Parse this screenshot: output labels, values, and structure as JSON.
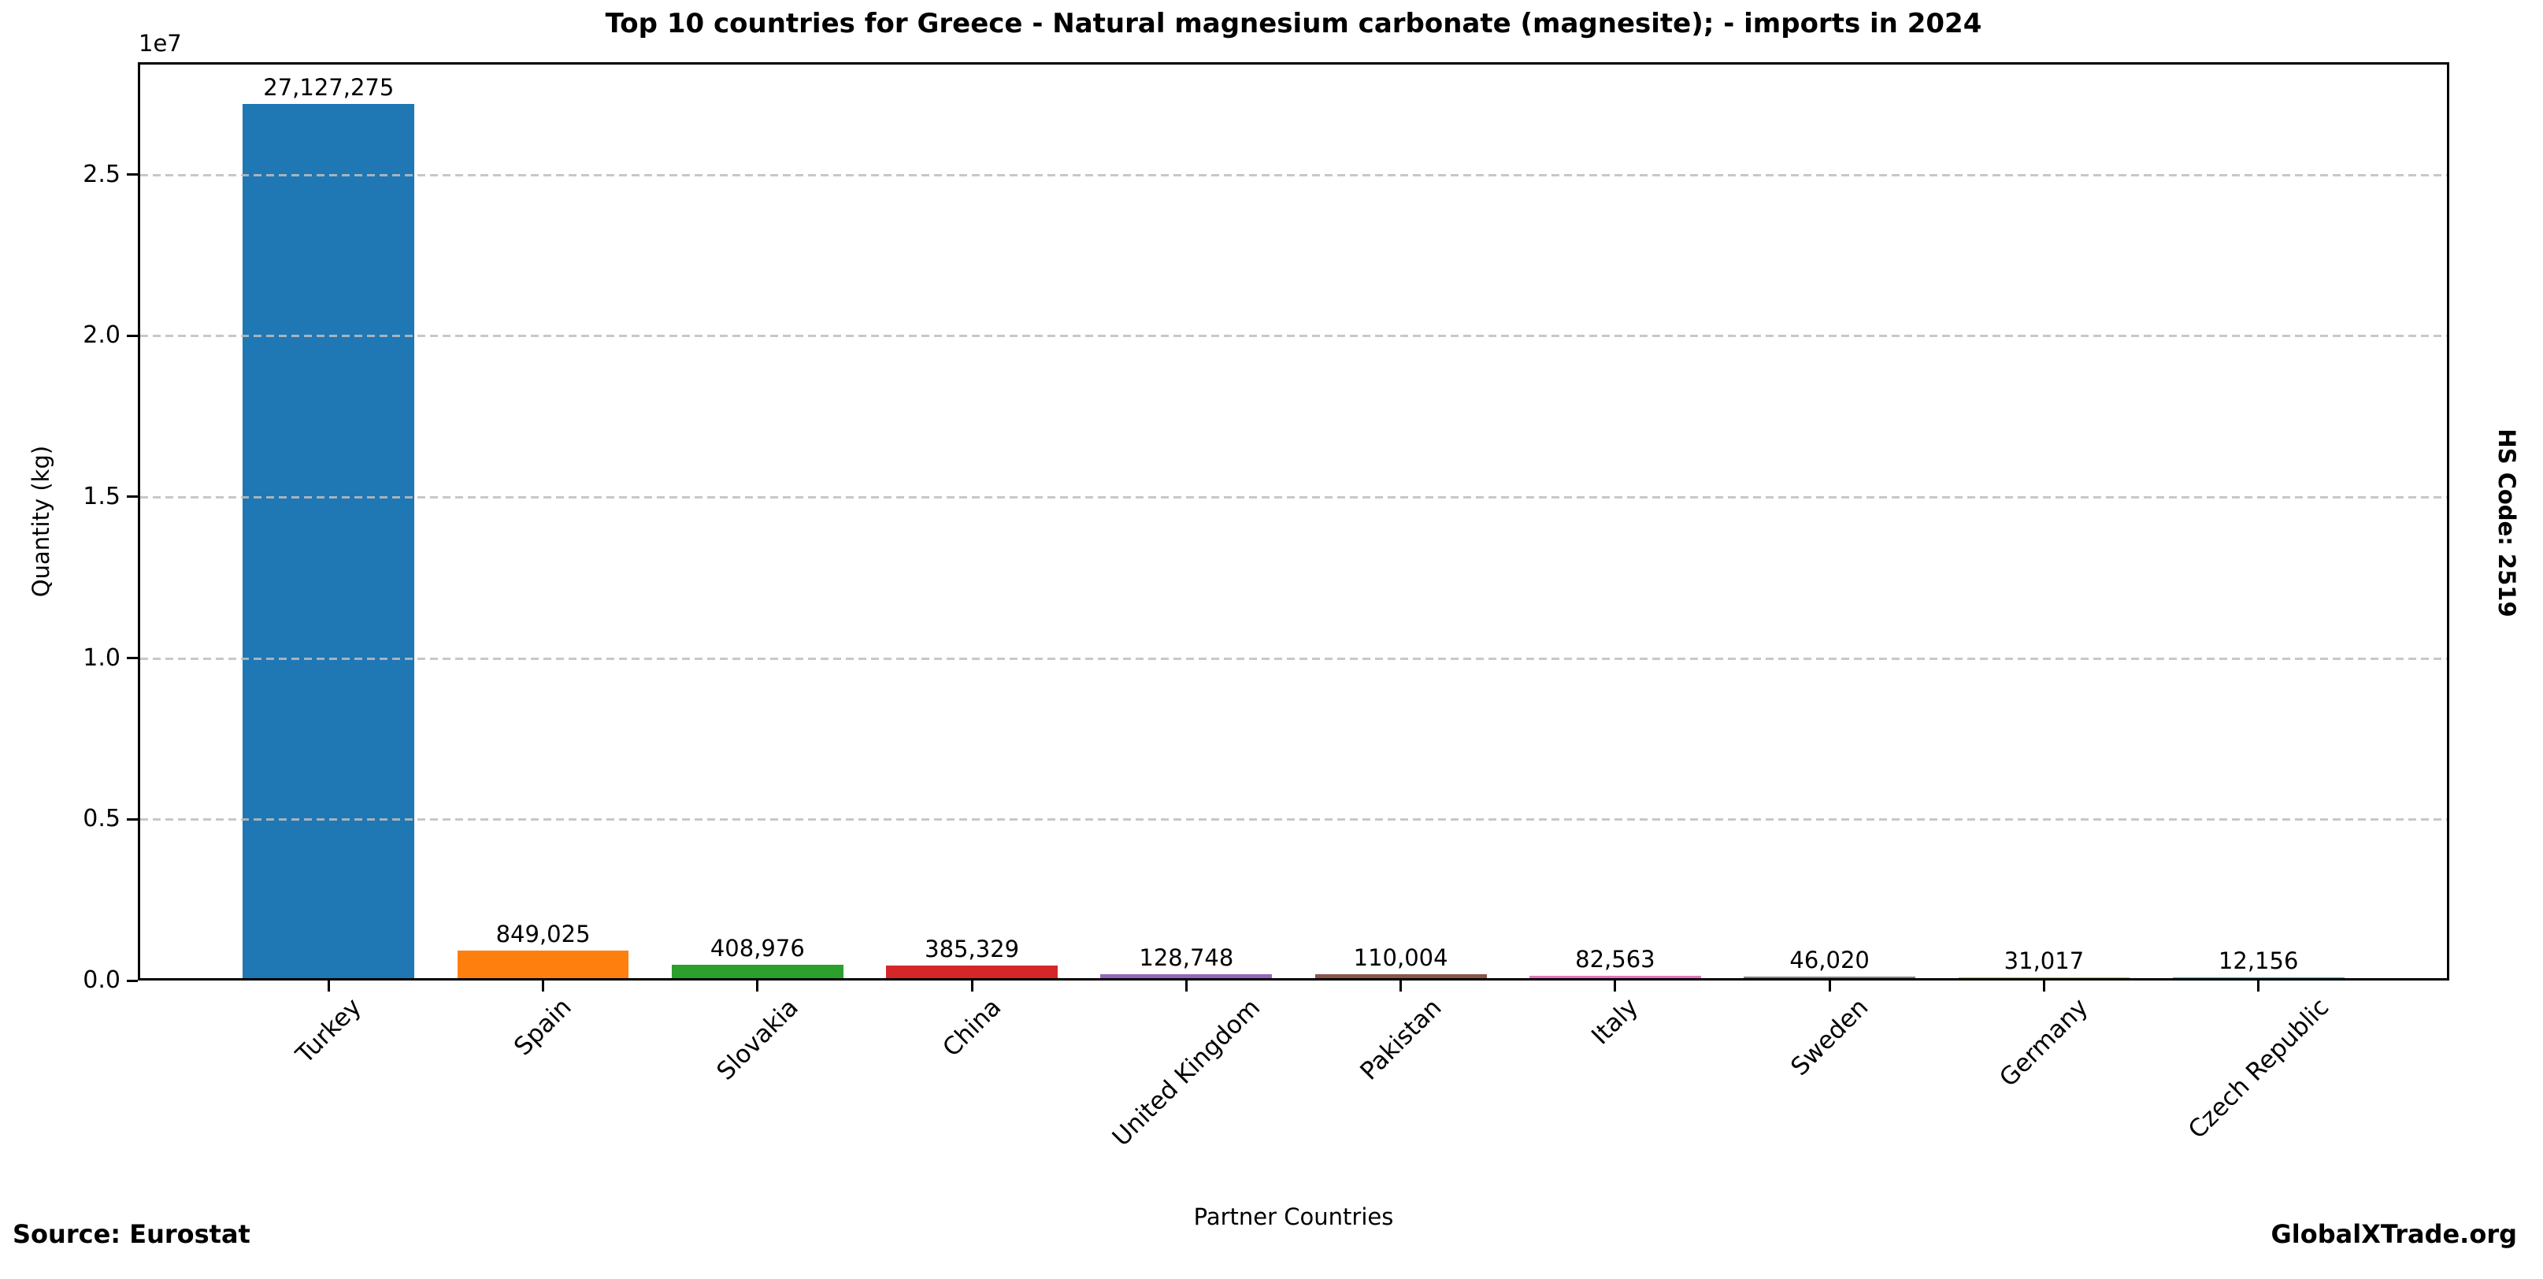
{
  "page": {
    "source_note": "Source: Eurostat",
    "brand": "GlobalXTrade.org",
    "right_side_label": "HS Code: 2519",
    "background_color": "#ffffff",
    "text_color": "#000000",
    "gridline_color": "#bebebe"
  },
  "chart_data": {
    "type": "bar",
    "title": "Top 10 countries for Greece - Natural magnesium carbonate (magnesite); - imports in 2024",
    "xlabel": "Partner Countries",
    "ylabel": "Quantity (kg)",
    "categories": [
      "Turkey",
      "Spain",
      "Slovakia",
      "China",
      "United Kingdom",
      "Pakistan",
      "Italy",
      "Sweden",
      "Germany",
      "Czech Republic"
    ],
    "values": [
      27127275,
      849025,
      408976,
      385329,
      128748,
      110004,
      82563,
      46020,
      31017,
      12156
    ],
    "value_labels": [
      "27,127,275",
      "849,025",
      "408,976",
      "385,329",
      "128,748",
      "110,004",
      "82,563",
      "46,020",
      "31,017",
      "12,156"
    ],
    "bar_colors": [
      "#1f77b4",
      "#ff7f0e",
      "#2ca02c",
      "#d62728",
      "#9467bd",
      "#8c564b",
      "#e377c2",
      "#7f7f7f",
      "#bcbd22",
      "#17becf"
    ],
    "y_axis": {
      "offset_label": "1e7",
      "tick_labels": [
        "0.0",
        "0.5",
        "1.0",
        "1.5",
        "2.0",
        "2.5"
      ],
      "tick_values": [
        0,
        5000000,
        10000000,
        15000000,
        20000000,
        25000000
      ]
    },
    "ylim": [
      0,
      28483639
    ],
    "xtick_rotation_deg": 45,
    "grid": {
      "orientation": "horizontal",
      "style": "dashed",
      "on": true
    },
    "legend": {
      "visible": false
    }
  }
}
